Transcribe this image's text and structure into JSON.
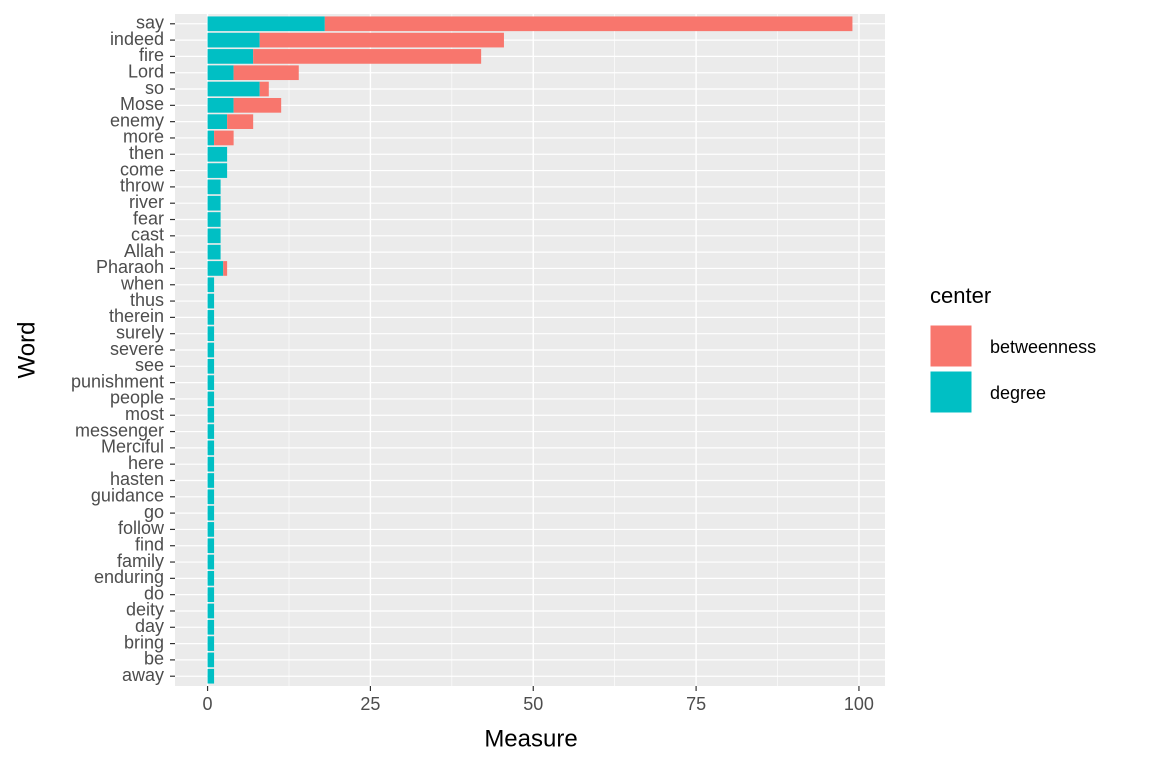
{
  "chart_data": {
    "type": "stacked-barh",
    "x_label": "Measure",
    "y_label": "Word",
    "categories": [
      "say",
      "indeed",
      "fire",
      "Lord",
      "so",
      "Mose",
      "enemy",
      "more",
      "then",
      "come",
      "throw",
      "river",
      "fear",
      "cast",
      "Allah",
      "Pharaoh",
      "when",
      "thus",
      "therein",
      "surely",
      "severe",
      "see",
      "punishment",
      "people",
      "most",
      "messenger",
      "Merciful",
      "here",
      "hasten",
      "guidance",
      "go",
      "follow",
      "find",
      "family",
      "enduring",
      "do",
      "deity",
      "day",
      "bring",
      "be",
      "away"
    ],
    "series": [
      {
        "name": "degree",
        "color": "#00bfc4",
        "values": [
          18,
          8,
          7,
          4,
          8,
          4,
          3,
          1,
          3,
          3,
          2,
          2,
          2,
          2,
          2,
          2.4,
          1,
          1,
          1,
          1,
          1,
          1,
          1,
          1,
          1,
          1,
          1,
          1,
          1,
          1,
          1,
          1,
          1,
          1,
          1,
          1,
          1,
          1,
          1,
          1,
          1
        ]
      },
      {
        "name": "betweenness",
        "color": "#f8766d",
        "values": [
          81,
          37.5,
          35,
          10,
          1.4,
          7.3,
          4,
          3,
          0,
          0,
          0,
          0,
          0,
          0,
          0,
          0.6,
          0,
          0,
          0,
          0,
          0,
          0,
          0,
          0,
          0,
          0,
          0,
          0,
          0,
          0,
          0,
          0,
          0,
          0,
          0,
          0,
          0,
          0,
          0,
          0,
          0
        ]
      }
    ],
    "legend_title": "center",
    "legend_order": [
      1,
      0
    ],
    "xlim": [
      -5,
      104
    ],
    "xticks": [
      0,
      25,
      50,
      75,
      100
    ],
    "grid": true
  }
}
